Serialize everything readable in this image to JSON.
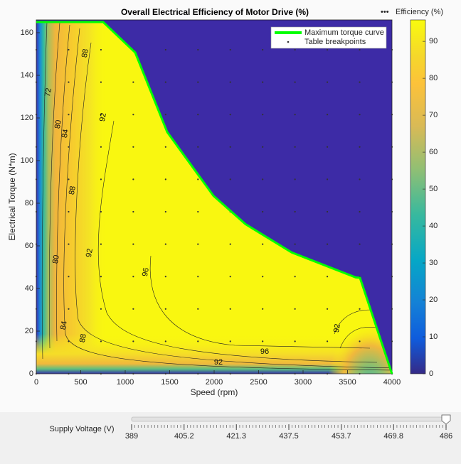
{
  "chart_data": {
    "type": "contour",
    "title": "Overall Electrical Efficiency of Motor Drive (%)",
    "xlabel": "Speed (rpm)",
    "ylabel": "Electrical Torque (N*m)",
    "xlim": [
      0,
      4000
    ],
    "ylim": [
      0,
      166
    ],
    "xticks": [
      0,
      500,
      1000,
      1500,
      2000,
      2500,
      3000,
      3500,
      4000
    ],
    "yticks": [
      0,
      20,
      40,
      60,
      80,
      100,
      120,
      140,
      160
    ],
    "series": [
      {
        "name": "Maximum torque curve",
        "color": "#00ff00",
        "x": [
          0,
          752,
          1112,
          1472,
          1992,
          2352,
          2872,
          3592,
          3640,
          4000
        ],
        "values": [
          165,
          165,
          150.7,
          113.4,
          83.5,
          70.2,
          56.9,
          45.2,
          45,
          0
        ]
      },
      {
        "name": "Table breakpoints",
        "color": "#333333",
        "speeds": [
          0,
          363.6,
          727.3,
          1090.9,
          1454.5,
          1818.2,
          2181.8,
          2545.5,
          2909.1,
          3272.7,
          3636.4,
          4000
        ],
        "torques": [
          0,
          15.2,
          30.4,
          45.6,
          60.8,
          76,
          91.2,
          106.4,
          121.6,
          136.8,
          152
        ]
      }
    ],
    "contour_labels": [
      96,
      96,
      92,
      92,
      92,
      88,
      88,
      88,
      84,
      84,
      80,
      80,
      72,
      92
    ],
    "colorbar": {
      "label": "Efficiency (%)",
      "clim": [
        0,
        95.8
      ],
      "ticks": [
        0,
        10,
        20,
        30,
        40,
        50,
        60,
        70,
        80,
        90
      ]
    }
  },
  "slider": {
    "label": "Supply Voltage (V)",
    "min": 389,
    "max": 486,
    "value": 486,
    "ticks": [
      389,
      405.2,
      421.3,
      437.5,
      453.7,
      469.8,
      486
    ]
  }
}
